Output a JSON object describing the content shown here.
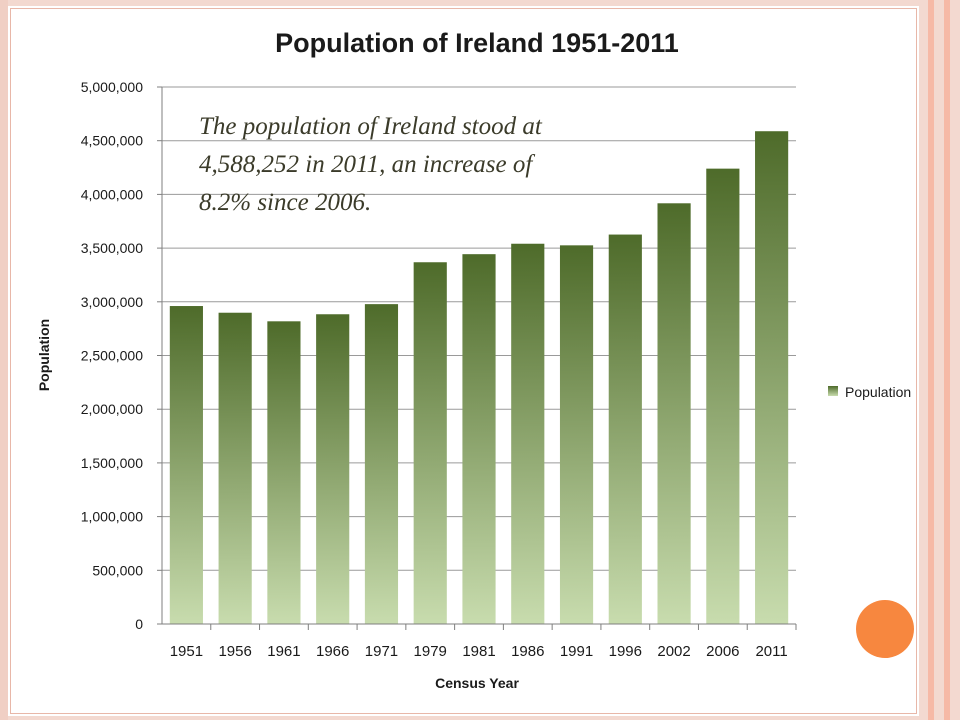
{
  "chart_data": {
    "type": "bar",
    "title": "Population of Ireland 1951-2011",
    "xlabel": "Census Year",
    "ylabel": "Population",
    "categories": [
      "1951",
      "1956",
      "1961",
      "1966",
      "1971",
      "1979",
      "1981",
      "1986",
      "1991",
      "1996",
      "2002",
      "2006",
      "2011"
    ],
    "series": [
      {
        "name": "Population",
        "values": [
          2960593,
          2898264,
          2818341,
          2884002,
          2978248,
          3368217,
          3443405,
          3540643,
          3525719,
          3626087,
          3917203,
          4239848,
          4588252
        ]
      }
    ],
    "ylim": [
      0,
      5000000
    ],
    "yticks": [
      0,
      500000,
      1000000,
      1500000,
      2000000,
      2500000,
      3000000,
      3500000,
      4000000,
      4500000,
      5000000
    ],
    "ytick_labels": [
      "0",
      "500,000",
      "1,000,000",
      "1,500,000",
      "2,000,000",
      "2,500,000",
      "3,000,000",
      "3,500,000",
      "4,000,000",
      "4,500,000",
      "5,000,000"
    ],
    "grid": true,
    "legend_position": "right",
    "annotation": {
      "lines": [
        "The population of Ireland stood at",
        "4,588,252 in 2011, an increase of",
        "8.2% since 2006."
      ]
    },
    "colors": {
      "bar_top": "#4e6b2a",
      "bar_bottom": "#c8dcae",
      "grid": "#9a9a9a",
      "axis": "#7f7f7f",
      "text": "#1a1a1a",
      "annotation": "#3b3b2a"
    }
  },
  "decor": {
    "frame_colors": [
      "#f0cfc4",
      "#f6b9a6",
      "#f3d9d0"
    ],
    "circle_color": "#f7873f"
  }
}
